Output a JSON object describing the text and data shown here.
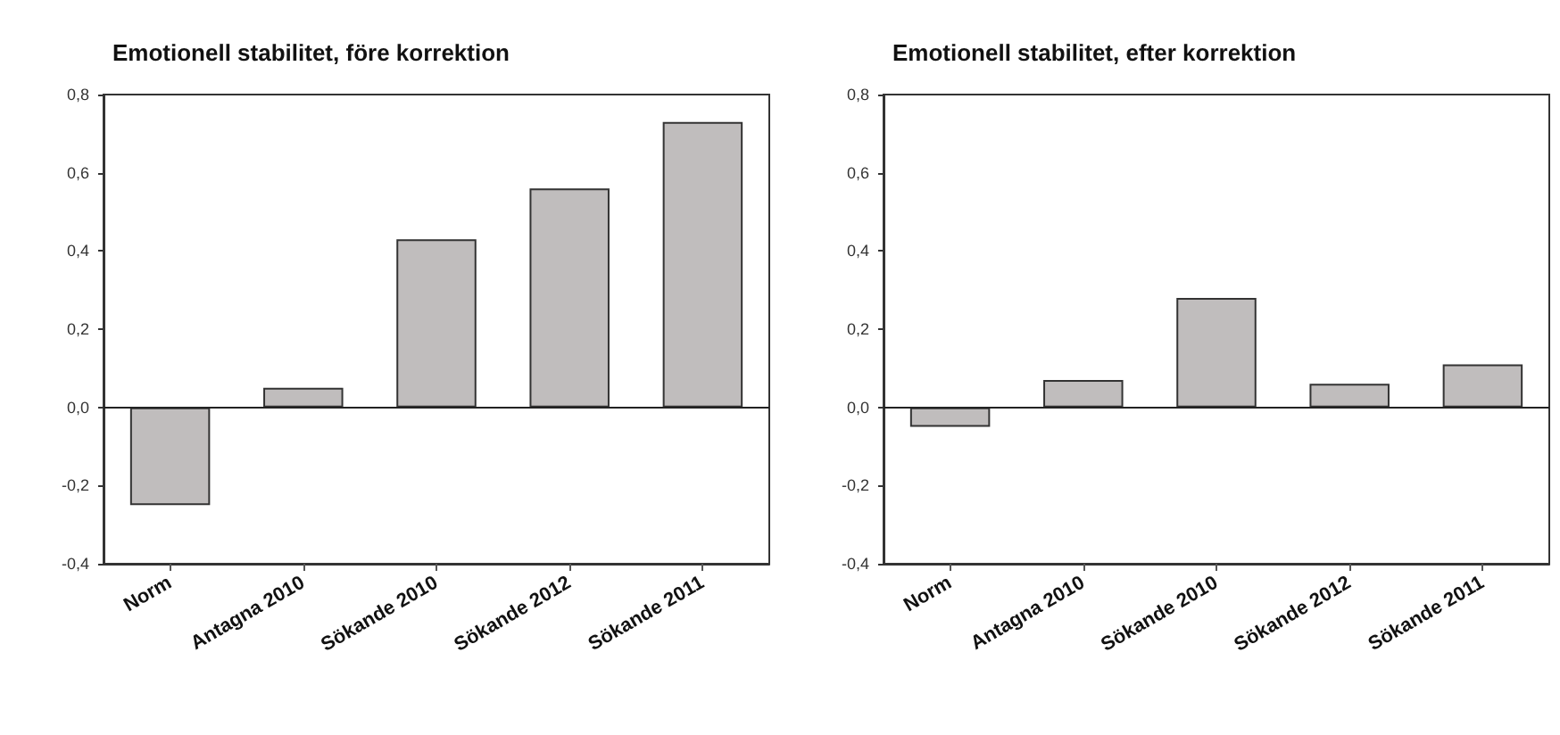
{
  "chart_data": [
    {
      "type": "bar",
      "title": "Emotionell stabilitet, före korrektion",
      "categories": [
        "Norm",
        "Antagna 2010",
        "Sökande 2010",
        "Sökande 2012",
        "Sökande 2011"
      ],
      "series": [
        {
          "color": "#c0bdbd",
          "values": [
            -0.25,
            0.05,
            0.43,
            0.56,
            0.73
          ]
        }
      ],
      "ylim": [
        -0.4,
        0.8
      ],
      "yticks": [
        {
          "value": -0.4,
          "label": "-0,4"
        },
        {
          "value": -0.2,
          "label": "-0,2"
        },
        {
          "value": 0,
          "label": "0,0"
        },
        {
          "value": 0.2,
          "label": "0,2"
        },
        {
          "value": 0.4,
          "label": "0,4"
        },
        {
          "value": 0.6,
          "label": "0,6"
        },
        {
          "value": 0.8,
          "label": "0,8"
        }
      ],
      "ref_lines": [
        {
          "axis": "y",
          "value": 0,
          "color": "#222222"
        }
      ],
      "grid": false
    },
    {
      "type": "bar",
      "title": "Emotionell stabilitet, efter korrektion",
      "categories": [
        "Norm",
        "Antagna 2010",
        "Sökande 2010",
        "Sökande 2012",
        "Sökande 2011"
      ],
      "series": [
        {
          "color": "#c0bdbd",
          "values": [
            -0.05,
            0.07,
            0.28,
            0.06,
            0.11
          ]
        }
      ],
      "ylim": [
        -0.4,
        0.8
      ],
      "yticks": [
        {
          "value": -0.4,
          "label": "-0,4"
        },
        {
          "value": -0.2,
          "label": "-0,2"
        },
        {
          "value": 0,
          "label": "0,0"
        },
        {
          "value": 0.2,
          "label": "0,2"
        },
        {
          "value": 0.4,
          "label": "0,4"
        },
        {
          "value": 0.6,
          "label": "0,6"
        },
        {
          "value": 0.8,
          "label": "0,8"
        }
      ],
      "ref_lines": [
        {
          "axis": "y",
          "value": 0,
          "color": "#222222"
        }
      ],
      "grid": false
    }
  ]
}
